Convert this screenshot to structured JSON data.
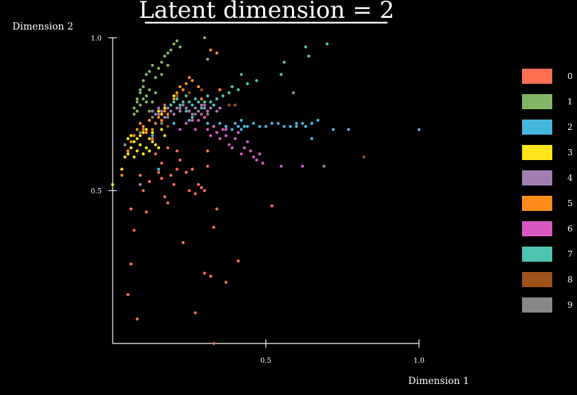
{
  "chart_data": {
    "type": "scatter",
    "title": "Latent dimension = 2",
    "xlabel": "Dimension 1",
    "ylabel": "Dimension 2",
    "xlim": [
      0.0,
      1.0
    ],
    "ylim": [
      0.0,
      1.0
    ],
    "xticks": [
      0.5,
      1.0
    ],
    "yticks": [
      0.5,
      1.0
    ],
    "xtick_labels": [
      "0.5",
      "1.0"
    ],
    "ytick_labels": [
      "0.5",
      "1.0"
    ],
    "grid": false,
    "legend_position": "right",
    "series": [
      {
        "name": "0",
        "color": "#ff6f52",
        "points": [
          [
            0.06,
            0.44
          ],
          [
            0.07,
            0.37
          ],
          [
            0.05,
            0.16
          ],
          [
            0.06,
            0.26
          ],
          [
            0.08,
            0.08
          ],
          [
            0.11,
            0.43
          ],
          [
            0.1,
            0.5
          ],
          [
            0.12,
            0.53
          ],
          [
            0.14,
            0.62
          ],
          [
            0.15,
            0.56
          ],
          [
            0.16,
            0.54
          ],
          [
            0.17,
            0.48
          ],
          [
            0.18,
            0.46
          ],
          [
            0.19,
            0.55
          ],
          [
            0.2,
            0.52
          ],
          [
            0.21,
            0.57
          ],
          [
            0.22,
            0.6
          ],
          [
            0.23,
            0.33
          ],
          [
            0.24,
            0.56
          ],
          [
            0.25,
            0.5
          ],
          [
            0.26,
            0.57
          ],
          [
            0.27,
            0.1
          ],
          [
            0.28,
            0.52
          ],
          [
            0.29,
            0.51
          ],
          [
            0.3,
            0.23
          ],
          [
            0.31,
            0.58
          ],
          [
            0.32,
            0.22
          ],
          [
            0.33,
            0.38
          ],
          [
            0.34,
            0.44
          ],
          [
            0.37,
            0.2
          ],
          [
            0.41,
            0.27
          ],
          [
            0.52,
            0.45
          ],
          [
            0.33,
            0.0
          ],
          [
            0.18,
            0.64
          ],
          [
            0.21,
            0.63
          ],
          [
            0.16,
            0.59
          ],
          [
            0.13,
            0.67
          ],
          [
            0.27,
            0.49
          ],
          [
            0.3,
            0.5
          ],
          [
            0.09,
            0.55
          ]
        ]
      },
      {
        "name": "1",
        "color": "#82b666",
        "points": [
          [
            0.07,
            0.77
          ],
          [
            0.08,
            0.8
          ],
          [
            0.09,
            0.83
          ],
          [
            0.1,
            0.86
          ],
          [
            0.11,
            0.88
          ],
          [
            0.12,
            0.89
          ],
          [
            0.13,
            0.91
          ],
          [
            0.14,
            0.87
          ],
          [
            0.15,
            0.9
          ],
          [
            0.16,
            0.92
          ],
          [
            0.17,
            0.94
          ],
          [
            0.18,
            0.95
          ],
          [
            0.19,
            0.96
          ],
          [
            0.2,
            0.98
          ],
          [
            0.21,
            0.99
          ],
          [
            0.22,
            0.97
          ],
          [
            0.08,
            0.79
          ],
          [
            0.09,
            0.82
          ],
          [
            0.1,
            0.84
          ],
          [
            0.11,
            0.81
          ],
          [
            0.12,
            0.83
          ],
          [
            0.07,
            0.75
          ],
          [
            0.08,
            0.76
          ],
          [
            0.09,
            0.78
          ],
          [
            0.1,
            0.8
          ],
          [
            0.12,
            0.76
          ],
          [
            0.13,
            0.79
          ],
          [
            0.11,
            0.79
          ],
          [
            0.14,
            0.82
          ],
          [
            0.3,
            1.0
          ],
          [
            0.31,
            0.93
          ],
          [
            0.18,
            0.91
          ],
          [
            0.16,
            0.88
          ]
        ]
      },
      {
        "name": "2",
        "color": "#45b7dd",
        "points": [
          [
            0.31,
            0.72
          ],
          [
            0.33,
            0.71
          ],
          [
            0.35,
            0.72
          ],
          [
            0.37,
            0.71
          ],
          [
            0.39,
            0.7
          ],
          [
            0.4,
            0.72
          ],
          [
            0.42,
            0.73
          ],
          [
            0.43,
            0.71
          ],
          [
            0.44,
            0.71
          ],
          [
            0.46,
            0.72
          ],
          [
            0.48,
            0.71
          ],
          [
            0.5,
            0.71
          ],
          [
            0.52,
            0.72
          ],
          [
            0.54,
            0.72
          ],
          [
            0.56,
            0.71
          ],
          [
            0.58,
            0.71
          ],
          [
            0.6,
            0.72
          ],
          [
            0.62,
            0.72
          ],
          [
            0.63,
            0.71
          ],
          [
            0.65,
            0.72
          ],
          [
            0.67,
            0.73
          ],
          [
            0.72,
            0.7
          ],
          [
            0.77,
            0.7
          ],
          [
            1.0,
            0.7
          ],
          [
            0.65,
            0.67
          ],
          [
            0.2,
            0.72
          ],
          [
            0.25,
            0.73
          ],
          [
            0.41,
            0.71
          ],
          [
            0.42,
            0.7
          ],
          [
            0.15,
            0.57
          ],
          [
            0.13,
            0.68
          ],
          [
            0.6,
            0.71
          ]
        ]
      },
      {
        "name": "3",
        "color": "#ffe51a",
        "points": [
          [
            0.0,
            0.52
          ],
          [
            0.03,
            0.57
          ],
          [
            0.04,
            0.61
          ],
          [
            0.05,
            0.62
          ],
          [
            0.06,
            0.64
          ],
          [
            0.07,
            0.66
          ],
          [
            0.08,
            0.67
          ],
          [
            0.09,
            0.68
          ],
          [
            0.1,
            0.69
          ],
          [
            0.11,
            0.7
          ],
          [
            0.12,
            0.67
          ],
          [
            0.13,
            0.66
          ],
          [
            0.14,
            0.65
          ],
          [
            0.15,
            0.64
          ],
          [
            0.16,
            0.7
          ],
          [
            0.17,
            0.68
          ],
          [
            0.05,
            0.67
          ],
          [
            0.06,
            0.68
          ],
          [
            0.08,
            0.63
          ],
          [
            0.09,
            0.65
          ],
          [
            0.1,
            0.62
          ],
          [
            0.11,
            0.64
          ],
          [
            0.12,
            0.63
          ],
          [
            0.13,
            0.69
          ],
          [
            0.07,
            0.61
          ],
          [
            0.2,
            0.81
          ],
          [
            0.17,
            0.77
          ],
          [
            0.15,
            0.76
          ],
          [
            0.16,
            0.75
          ]
        ]
      },
      {
        "name": "4",
        "color": "#a07db3",
        "points": [
          [
            0.14,
            0.75
          ],
          [
            0.15,
            0.77
          ],
          [
            0.16,
            0.76
          ],
          [
            0.17,
            0.78
          ],
          [
            0.18,
            0.77
          ],
          [
            0.19,
            0.76
          ],
          [
            0.2,
            0.75
          ],
          [
            0.21,
            0.77
          ],
          [
            0.22,
            0.76
          ],
          [
            0.23,
            0.78
          ],
          [
            0.24,
            0.77
          ],
          [
            0.25,
            0.76
          ],
          [
            0.26,
            0.75
          ],
          [
            0.27,
            0.77
          ],
          [
            0.28,
            0.76
          ],
          [
            0.29,
            0.78
          ],
          [
            0.3,
            0.77
          ],
          [
            0.31,
            0.76
          ],
          [
            0.32,
            0.77
          ],
          [
            0.33,
            0.78
          ],
          [
            0.34,
            0.76
          ],
          [
            0.35,
            0.77
          ],
          [
            0.59,
            0.82
          ],
          [
            0.15,
            0.75
          ],
          [
            0.13,
            0.76
          ],
          [
            0.17,
            0.74
          ],
          [
            0.69,
            0.58
          ],
          [
            0.09,
            0.52
          ]
        ]
      },
      {
        "name": "5",
        "color": "#ff8c1a",
        "points": [
          [
            0.04,
            0.65
          ],
          [
            0.05,
            0.63
          ],
          [
            0.06,
            0.66
          ],
          [
            0.07,
            0.68
          ],
          [
            0.08,
            0.7
          ],
          [
            0.09,
            0.72
          ],
          [
            0.1,
            0.71
          ],
          [
            0.11,
            0.69
          ],
          [
            0.12,
            0.73
          ],
          [
            0.13,
            0.7
          ],
          [
            0.14,
            0.72
          ],
          [
            0.15,
            0.74
          ],
          [
            0.16,
            0.73
          ],
          [
            0.17,
            0.76
          ],
          [
            0.18,
            0.75
          ],
          [
            0.19,
            0.78
          ],
          [
            0.2,
            0.8
          ],
          [
            0.21,
            0.82
          ],
          [
            0.22,
            0.84
          ],
          [
            0.23,
            0.83
          ],
          [
            0.24,
            0.85
          ],
          [
            0.25,
            0.87
          ],
          [
            0.26,
            0.86
          ],
          [
            0.28,
            0.84
          ],
          [
            0.29,
            0.8
          ],
          [
            0.32,
            0.96
          ],
          [
            0.34,
            0.95
          ],
          [
            0.31,
            0.63
          ],
          [
            0.03,
            0.55
          ],
          [
            0.1,
            0.7
          ],
          [
            0.35,
            0.83
          ]
        ]
      },
      {
        "name": "6",
        "color": "#d957c0",
        "points": [
          [
            0.22,
            0.7
          ],
          [
            0.24,
            0.72
          ],
          [
            0.26,
            0.73
          ],
          [
            0.27,
            0.7
          ],
          [
            0.28,
            0.73
          ],
          [
            0.29,
            0.75
          ],
          [
            0.3,
            0.74
          ],
          [
            0.31,
            0.7
          ],
          [
            0.32,
            0.68
          ],
          [
            0.33,
            0.71
          ],
          [
            0.34,
            0.69
          ],
          [
            0.35,
            0.67
          ],
          [
            0.36,
            0.7
          ],
          [
            0.37,
            0.68
          ],
          [
            0.38,
            0.65
          ],
          [
            0.39,
            0.64
          ],
          [
            0.4,
            0.67
          ],
          [
            0.41,
            0.69
          ],
          [
            0.42,
            0.62
          ],
          [
            0.43,
            0.64
          ],
          [
            0.44,
            0.66
          ],
          [
            0.45,
            0.63
          ],
          [
            0.46,
            0.61
          ],
          [
            0.47,
            0.6
          ],
          [
            0.48,
            0.62
          ],
          [
            0.49,
            0.59
          ],
          [
            0.55,
            0.58
          ],
          [
            0.62,
            0.58
          ],
          [
            0.37,
            0.7
          ],
          [
            0.3,
            0.78
          ]
        ]
      },
      {
        "name": "7",
        "color": "#4ec4b0",
        "points": [
          [
            0.19,
            0.78
          ],
          [
            0.2,
            0.79
          ],
          [
            0.21,
            0.8
          ],
          [
            0.22,
            0.78
          ],
          [
            0.23,
            0.79
          ],
          [
            0.24,
            0.81
          ],
          [
            0.25,
            0.79
          ],
          [
            0.26,
            0.78
          ],
          [
            0.27,
            0.8
          ],
          [
            0.28,
            0.79
          ],
          [
            0.29,
            0.77
          ],
          [
            0.3,
            0.79
          ],
          [
            0.31,
            0.81
          ],
          [
            0.32,
            0.79
          ],
          [
            0.33,
            0.78
          ],
          [
            0.34,
            0.8
          ],
          [
            0.36,
            0.81
          ],
          [
            0.38,
            0.82
          ],
          [
            0.39,
            0.84
          ],
          [
            0.41,
            0.83
          ],
          [
            0.42,
            0.88
          ],
          [
            0.44,
            0.85
          ],
          [
            0.47,
            0.86
          ],
          [
            0.55,
            0.88
          ],
          [
            0.56,
            0.92
          ],
          [
            0.64,
            0.94
          ],
          [
            0.7,
            0.98
          ],
          [
            0.63,
            0.97
          ],
          [
            0.26,
            0.74
          ],
          [
            0.24,
            0.76
          ]
        ]
      },
      {
        "name": "8",
        "color": "#a0521b",
        "points": [
          [
            0.82,
            0.61
          ],
          [
            0.38,
            0.78
          ],
          [
            0.4,
            0.78
          ],
          [
            0.29,
            0.83
          ],
          [
            0.25,
            0.82
          ],
          [
            0.18,
            0.71
          ],
          [
            0.21,
            0.81
          ]
        ]
      },
      {
        "name": "9",
        "color": "#888888",
        "points": [
          [
            0.04,
            0.65
          ],
          [
            0.09,
            0.69
          ],
          [
            0.16,
            0.72
          ],
          [
            0.22,
            0.77
          ],
          [
            0.27,
            0.75
          ],
          [
            0.31,
            0.75
          ],
          [
            0.18,
            0.74
          ],
          [
            0.13,
            0.74
          ]
        ]
      }
    ]
  }
}
